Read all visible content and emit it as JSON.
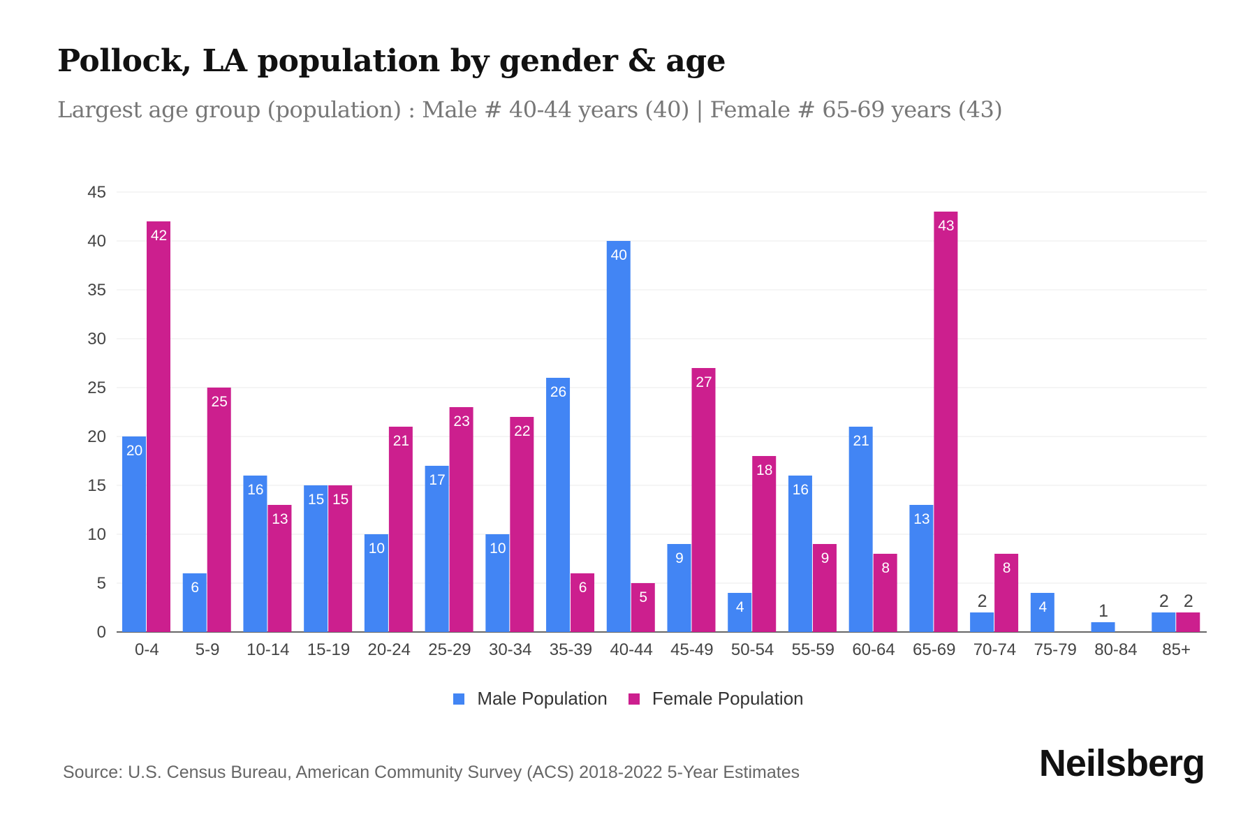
{
  "title": "Pollock, LA population by gender & age",
  "subtitle": "Largest age group (population) : Male # 40-44 years (40) | Female # 65-69 years (43)",
  "source": "Source: U.S. Census Bureau, American Community Survey (ACS) 2018-2022 5-Year Estimates",
  "logo": "Neilsberg",
  "chart_data": {
    "type": "bar",
    "title": "Pollock, LA population by gender & age",
    "xlabel": "",
    "ylabel": "",
    "ylim": [
      0,
      45
    ],
    "yticks": [
      0,
      5,
      10,
      15,
      20,
      25,
      30,
      35,
      40,
      45
    ],
    "grid": true,
    "legend_position": "bottom",
    "categories": [
      "0-4",
      "5-9",
      "10-14",
      "15-19",
      "20-24",
      "25-29",
      "30-34",
      "35-39",
      "40-44",
      "45-49",
      "50-54",
      "55-59",
      "60-64",
      "65-69",
      "70-74",
      "75-79",
      "80-84",
      "85+"
    ],
    "series": [
      {
        "name": "Male Population",
        "color": "#4285F4",
        "values": [
          20,
          6,
          16,
          15,
          10,
          17,
          10,
          26,
          40,
          9,
          4,
          16,
          21,
          13,
          2,
          4,
          1,
          2
        ]
      },
      {
        "name": "Female Population",
        "color": "#CC1F8E",
        "values": [
          42,
          25,
          13,
          15,
          21,
          23,
          22,
          6,
          5,
          27,
          18,
          9,
          8,
          43,
          8,
          0,
          0,
          2
        ]
      }
    ]
  }
}
